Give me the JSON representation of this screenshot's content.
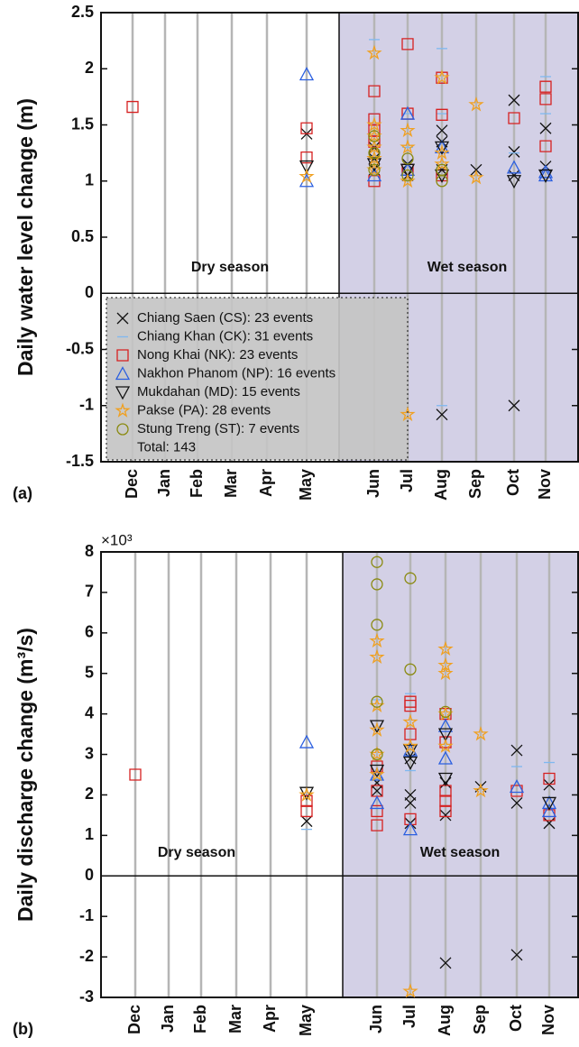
{
  "chart_data": [
    {
      "type": "scatter",
      "panel_label": "(a)",
      "ylabel": "Daily water level change (m)",
      "categories": [
        "Dec",
        "Jan",
        "Feb",
        "Mar",
        "Apr",
        "May",
        "Jun",
        "Jul",
        "Aug",
        "Sep",
        "Oct",
        "Nov"
      ],
      "ylim": [
        -1.5,
        2.5
      ],
      "yticks": [
        2.5,
        2,
        1.5,
        1,
        0.5,
        0,
        -0.5,
        -1,
        -1.5
      ],
      "annotations": [
        "Dry season",
        "Wet season"
      ],
      "wet_shade_color": "#d3d0e6",
      "grid": true,
      "legend": "bottom-left",
      "legend_note": "Total: 143",
      "series": [
        {
          "name": "Chiang Saen (CS): 23 events",
          "color": "#111111",
          "marker": "x",
          "x": [
            "May",
            "Jun",
            "Jun",
            "Jun",
            "Jul",
            "Jul",
            "Aug",
            "Aug",
            "Aug",
            "Aug",
            "Sep",
            "Oct",
            "Oct",
            "Oct",
            "Oct",
            "Nov",
            "Nov"
          ],
          "values": [
            1.42,
            1.3,
            1.2,
            1.1,
            1.15,
            1.05,
            1.45,
            1.35,
            1.1,
            -1.08,
            1.1,
            1.72,
            1.26,
            1.05,
            -1.0,
            1.47,
            1.13
          ]
        },
        {
          "name": "Chiang Khan (CK): 31 events",
          "color": "#7fb8f0",
          "marker": "dash",
          "x": [
            "Jun",
            "Jun",
            "Jul",
            "Jul",
            "Aug",
            "Aug",
            "Aug",
            "Oct",
            "Nov",
            "Nov"
          ],
          "values": [
            2.26,
            1.6,
            1.6,
            1.3,
            2.18,
            1.6,
            -1.0,
            1.25,
            1.93,
            1.6
          ]
        },
        {
          "name": "Nong Khai (NK): 23 events",
          "color": "#d62020",
          "marker": "square",
          "x": [
            "Dec",
            "May",
            "May",
            "Jun",
            "Jun",
            "Jun",
            "Jun",
            "Jun",
            "Jul",
            "Jul",
            "Jul",
            "Aug",
            "Aug",
            "Aug",
            "Oct",
            "Nov",
            "Nov",
            "Nov"
          ],
          "values": [
            1.66,
            1.47,
            1.21,
            1.8,
            1.55,
            1.45,
            1.35,
            1.0,
            2.22,
            1.6,
            1.1,
            1.92,
            1.59,
            1.05,
            1.56,
            1.84,
            1.73,
            1.31
          ]
        },
        {
          "name": "Nakhon Phanom (NP): 16 events",
          "color": "#2b5fe0",
          "marker": "triangle",
          "x": [
            "May",
            "May",
            "Jun",
            "Jul",
            "Jul",
            "Aug",
            "Oct",
            "Nov",
            "Nov"
          ],
          "values": [
            1.95,
            1.0,
            1.05,
            1.6,
            1.1,
            1.3,
            1.12,
            1.05,
            1.08
          ]
        },
        {
          "name": "Mukdahan (MD): 15 events",
          "color": "#111111",
          "marker": "triangle-down",
          "x": [
            "May",
            "Jun",
            "Jul",
            "Aug",
            "Aug",
            "Oct",
            "Nov"
          ],
          "values": [
            1.13,
            1.15,
            1.1,
            1.3,
            1.05,
            1.0,
            1.05
          ]
        },
        {
          "name": "Pakse (PA): 28 events",
          "color": "#f0a020",
          "marker": "star",
          "x": [
            "May",
            "Jun",
            "Jun",
            "Jun",
            "Jun",
            "Jun",
            "Jun",
            "Jul",
            "Jul",
            "Jul",
            "Jul",
            "Aug",
            "Aug",
            "Aug",
            "Sep",
            "Sep"
          ],
          "values": [
            1.04,
            2.14,
            1.5,
            1.4,
            1.3,
            1.2,
            1.1,
            1.45,
            1.3,
            1.0,
            -1.08,
            1.92,
            1.25,
            1.15,
            1.68,
            1.03
          ]
        },
        {
          "name": "Stung Treng (ST): 7 events",
          "color": "#8a8a10",
          "marker": "circle",
          "x": [
            "Jun",
            "Jun",
            "Jun",
            "Jul",
            "Jul",
            "Aug",
            "Aug"
          ],
          "values": [
            1.4,
            1.25,
            1.1,
            1.2,
            1.05,
            1.1,
            1.0
          ]
        }
      ]
    },
    {
      "type": "scatter",
      "panel_label": "(b)",
      "ylabel": "Daily discharge change (m³/s)",
      "y_multiplier": "×10³",
      "categories": [
        "Dec",
        "Jan",
        "Feb",
        "Mar",
        "Apr",
        "May",
        "Jun",
        "Jul",
        "Aug",
        "Sep",
        "Oct",
        "Nov"
      ],
      "ylim": [
        -3,
        8
      ],
      "yticks": [
        8,
        7,
        6,
        5,
        4,
        3,
        2,
        1,
        0,
        -1,
        -2,
        -3
      ],
      "annotations": [
        "Dry season",
        "Wet season"
      ],
      "wet_shade_color": "#d3d0e6",
      "grid": true,
      "series": [
        {
          "color": "#111111",
          "marker": "x",
          "x": [
            "May",
            "Jun",
            "Jun",
            "Jul",
            "Jul",
            "Jul",
            "Jul",
            "Aug",
            "Aug",
            "Aug",
            "Sep",
            "Oct",
            "Oct",
            "Oct",
            "Nov",
            "Nov"
          ],
          "values": [
            1.35,
            2.3,
            2.1,
            2.0,
            1.8,
            1.3,
            2.9,
            2.3,
            1.5,
            -2.15,
            2.2,
            3.1,
            1.8,
            -1.95,
            2.25,
            1.3
          ]
        },
        {
          "color": "#7fb8f0",
          "marker": "dash",
          "x": [
            "May",
            "Jun",
            "Jun",
            "Jul",
            "Jul",
            "Aug",
            "Oct",
            "Nov"
          ],
          "values": [
            1.15,
            4.35,
            2.4,
            4.5,
            2.6,
            3.9,
            2.7,
            2.8
          ]
        },
        {
          "color": "#d62020",
          "marker": "square",
          "x": [
            "Dec",
            "May",
            "May",
            "Jun",
            "Jun",
            "Jun",
            "Jun",
            "Jul",
            "Jul",
            "Jul",
            "Jul",
            "Aug",
            "Aug",
            "Aug",
            "Aug",
            "Aug",
            "Oct",
            "Nov",
            "Nov"
          ],
          "values": [
            2.5,
            1.85,
            1.6,
            2.7,
            2.1,
            1.6,
            1.25,
            4.3,
            4.2,
            3.5,
            1.4,
            4.0,
            3.3,
            2.1,
            1.85,
            1.6,
            2.1,
            2.4,
            1.5
          ]
        },
        {
          "color": "#2b5fe0",
          "marker": "triangle",
          "x": [
            "May",
            "Jun",
            "Jun",
            "Jul",
            "Jul",
            "Aug",
            "Aug",
            "Oct",
            "Nov",
            "Nov"
          ],
          "values": [
            3.3,
            1.8,
            2.5,
            1.15,
            3.1,
            3.7,
            2.9,
            2.2,
            1.8,
            1.6
          ]
        },
        {
          "color": "#111111",
          "marker": "triangle-down",
          "x": [
            "May",
            "Jun",
            "Jun",
            "Jul",
            "Jul",
            "Aug",
            "Aug",
            "Nov"
          ],
          "values": [
            2.05,
            3.7,
            2.6,
            3.1,
            2.8,
            3.5,
            2.4,
            1.8
          ]
        },
        {
          "color": "#f0a020",
          "marker": "star",
          "x": [
            "May",
            "Jun",
            "Jun",
            "Jun",
            "Jun",
            "Jun",
            "Jun",
            "Jul",
            "Jul",
            "Jul",
            "Aug",
            "Aug",
            "Aug",
            "Aug",
            "Aug",
            "Sep",
            "Sep"
          ],
          "values": [
            2.0,
            5.8,
            5.4,
            4.2,
            3.6,
            3.0,
            2.5,
            3.8,
            3.2,
            -2.85,
            5.6,
            5.2,
            5.0,
            4.0,
            3.2,
            3.5,
            2.1
          ]
        },
        {
          "color": "#8a8a10",
          "marker": "circle",
          "x": [
            "Jun",
            "Jun",
            "Jun",
            "Jun",
            "Jun",
            "Jul",
            "Jul",
            "Aug"
          ],
          "values": [
            7.75,
            7.2,
            6.2,
            4.3,
            3.0,
            7.35,
            5.1,
            4.05
          ]
        }
      ]
    }
  ]
}
